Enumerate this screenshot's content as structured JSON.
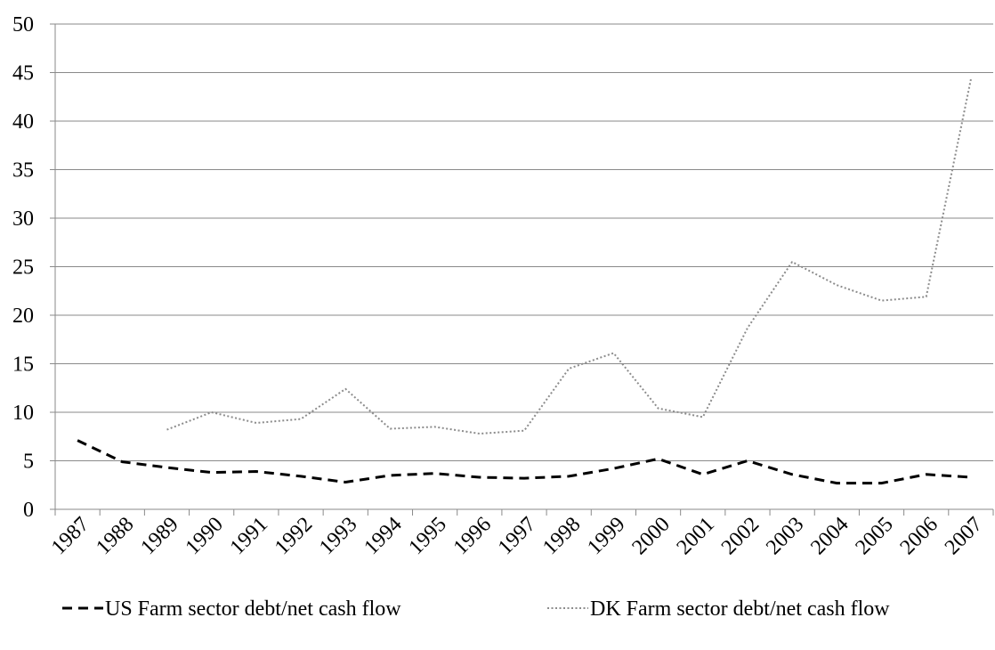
{
  "chart_data": {
    "type": "line",
    "title": "",
    "xlabel": "",
    "ylabel": "",
    "categories": [
      "1987",
      "1988",
      "1989",
      "1990",
      "1991",
      "1992",
      "1993",
      "1994",
      "1995",
      "1996",
      "1997",
      "1998",
      "1999",
      "2000",
      "2001",
      "2002",
      "2003",
      "2004",
      "2005",
      "2006",
      "2007"
    ],
    "ylim": [
      0,
      50
    ],
    "yticks": [
      0,
      5,
      10,
      15,
      20,
      25,
      30,
      35,
      40,
      45,
      50
    ],
    "grid": true,
    "legend_position": "bottom",
    "series": [
      {
        "name": "US Farm sector debt/net cash flow",
        "style": "dashed",
        "color": "#000000",
        "values": [
          7.1,
          4.9,
          4.3,
          3.8,
          3.9,
          3.4,
          2.8,
          3.5,
          3.7,
          3.3,
          3.2,
          3.4,
          4.2,
          5.2,
          3.6,
          5.0,
          3.6,
          2.7,
          2.7,
          3.6,
          3.3
        ]
      },
      {
        "name": "DK Farm sector debt/net cash flow",
        "style": "dotted",
        "color": "#8c8c8c",
        "values": [
          null,
          null,
          8.2,
          10.0,
          8.9,
          9.3,
          12.4,
          8.3,
          8.5,
          7.8,
          8.1,
          14.5,
          16.1,
          10.4,
          9.5,
          18.7,
          25.5,
          23.1,
          21.5,
          21.9,
          44.3
        ]
      }
    ]
  }
}
